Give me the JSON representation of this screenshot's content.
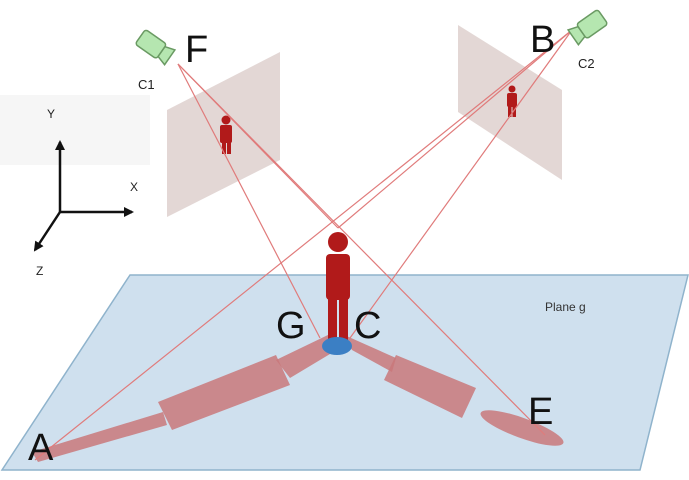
{
  "labels": {
    "point_a": "A",
    "point_b": "B",
    "point_c": "C",
    "point_e": "E",
    "point_f": "F",
    "point_g": "G",
    "camera_1": "C1",
    "camera_2": "C2",
    "axis_x": "X",
    "axis_y": "Y",
    "axis_z": "Z",
    "plane": "Plane g"
  },
  "colors": {
    "ground_plane_fill": "#cfe0ee",
    "ground_plane_stroke": "#8fb3cc",
    "image_plane_fill": "#d9c9c7",
    "ray": "#e07b7b",
    "person": "#b11a1a",
    "shadow": "#c9787a",
    "foot_point": "#3b7fc4",
    "camera_body": "#b5e6b0",
    "camera_stroke": "#6a9a63",
    "axes": "#111111"
  },
  "icons": {
    "camera": "camera-icon",
    "person": "person-figure"
  }
}
